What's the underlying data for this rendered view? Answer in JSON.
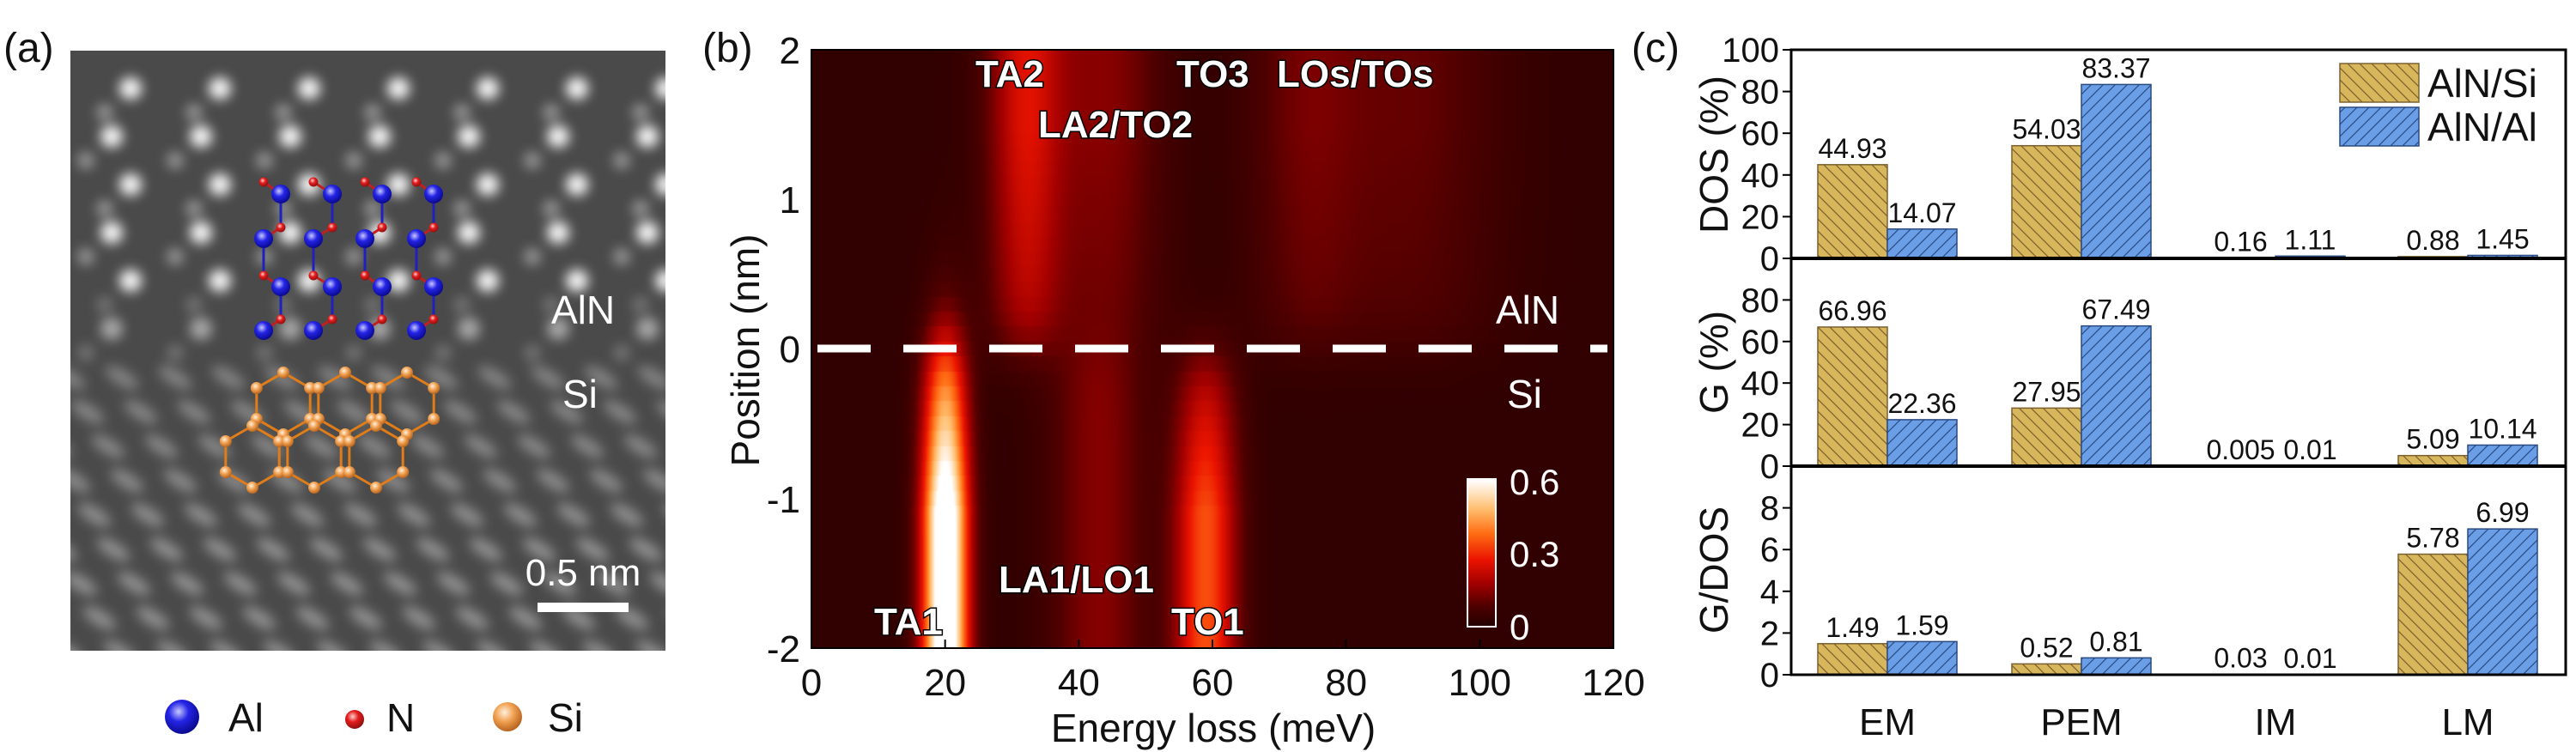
{
  "panels": {
    "a": "(a)",
    "b": "(b)",
    "c": "(c)"
  },
  "panel_a": {
    "region_labels": {
      "top": "AlN",
      "bottom": "Si"
    },
    "scale_bar": "0.5 nm",
    "legend": [
      {
        "symbol": "Al",
        "color": "#1c1ce0"
      },
      {
        "symbol": "N",
        "color": "#e01a1a"
      },
      {
        "symbol": "Si",
        "color": "#e8903a"
      }
    ]
  },
  "chart_data": [
    {
      "type": "heatmap",
      "xlabel": "Energy loss (meV)",
      "ylabel": "Position (nm)",
      "xlim": [
        0,
        120
      ],
      "ylim": [
        -2,
        2
      ],
      "xticks": [
        "0",
        "20",
        "40",
        "60",
        "80",
        "100",
        "120"
      ],
      "yticks": [
        "2",
        "1",
        "0",
        "-1",
        "-2"
      ],
      "colorbar": {
        "range": [
          0,
          0.6
        ],
        "ticks": [
          "0.6",
          "0.3",
          "0"
        ],
        "colormap": "hot"
      },
      "interface_position": 0,
      "region_labels": {
        "above": "AlN",
        "below": "Si"
      },
      "annotations": [
        "TA2",
        "LA2/TO2",
        "TO3",
        "LOs/TOs",
        "TA1",
        "LA1/LO1",
        "TO1"
      ],
      "bands": [
        {
          "label": "TA1",
          "energy": 20,
          "region": "Si",
          "peak_intensity": 0.7
        },
        {
          "label": "LA1/LO1",
          "energy": 43,
          "region": "Si",
          "peak_intensity": 0.12
        },
        {
          "label": "TO1",
          "energy": 59,
          "region": "Si",
          "peak_intensity": 0.32
        },
        {
          "label": "TA2",
          "energy": 32,
          "region": "AlN",
          "peak_intensity": 0.22
        },
        {
          "label": "LA2/TO2",
          "energy": 44,
          "region": "AlN",
          "peak_intensity": 0.12
        },
        {
          "label": "TO3",
          "energy": 74,
          "region": "AlN",
          "peak_intensity": 0.09
        },
        {
          "label": "LOs/TOs",
          "energy": 90,
          "region": "AlN",
          "peak_intensity": 0.08
        }
      ]
    },
    {
      "type": "bar",
      "categories": [
        "EM",
        "PEM",
        "IM",
        "LM"
      ],
      "series": [
        {
          "name": "AlN/Si",
          "color": "#d8b65c"
        },
        {
          "name": "AlN/Al",
          "color": "#6a9fe8"
        }
      ],
      "subplots": [
        {
          "ylabel": "DOS (%)",
          "ylim": [
            0,
            100
          ],
          "yticks": [
            "0",
            "20",
            "40",
            "60",
            "80",
            "100"
          ],
          "values": [
            [
              44.93,
              54.03,
              0.16,
              0.88
            ],
            [
              14.07,
              83.37,
              1.11,
              1.45
            ]
          ]
        },
        {
          "ylabel": "G (%)",
          "ylim": [
            0,
            100
          ],
          "yticks": [
            "0",
            "20",
            "40",
            "60",
            "80"
          ],
          "values": [
            [
              66.96,
              27.95,
              0.005,
              5.09
            ],
            [
              22.36,
              67.49,
              0.01,
              10.14
            ]
          ]
        },
        {
          "ylabel": "G/DOS",
          "ylim": [
            0,
            10
          ],
          "yticks": [
            "0",
            "2",
            "4",
            "6",
            "8"
          ],
          "values": [
            [
              1.49,
              0.52,
              0.03,
              5.78
            ],
            [
              1.59,
              0.81,
              0.01,
              6.99
            ]
          ]
        }
      ],
      "legend": "top-right"
    }
  ]
}
